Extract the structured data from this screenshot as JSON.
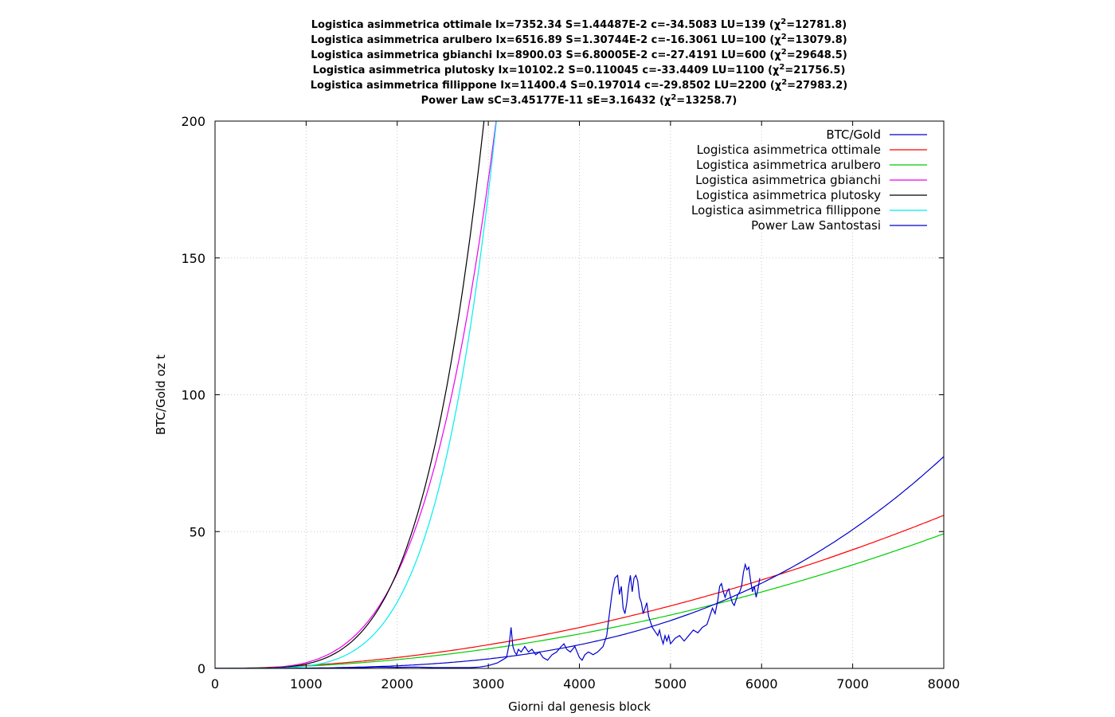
{
  "chart_data": {
    "type": "line",
    "title_lines": [
      {
        "text": "Logistica asimmetrica ottimale Ix=7352.34 S=1.44487E-2 c=-34.5083 LU=139 (",
        "chi": "χ",
        "sup": "2",
        "rest": "=12781.8)"
      },
      {
        "text": "Logistica asimmetrica arulbero Ix=6516.89 S=1.30744E-2 c=-16.3061 LU=100 (",
        "chi": "χ",
        "sup": "2",
        "rest": "=13079.8)"
      },
      {
        "text": "Logistica asimmetrica gbianchi Ix=8900.03 S=6.80005E-2 c=-27.4191 LU=600 (",
        "chi": "χ",
        "sup": "2",
        "rest": "=29648.5)"
      },
      {
        "text": "Logistica asimmetrica plutosky Ix=10102.2 S=0.110045 c=-33.4409 LU=1100 (",
        "chi": "χ",
        "sup": "2",
        "rest": "=21756.5)"
      },
      {
        "text": "Logistica asimmetrica fillippone Ix=11400.4 S=0.197014 c=-29.8502 LU=2200 (",
        "chi": "χ",
        "sup": "2",
        "rest": "=27983.2)"
      },
      {
        "text": "Power Law sC=3.45177E-11 sE=3.16432 (",
        "chi": "χ",
        "sup": "2",
        "rest": "=13258.7)"
      }
    ],
    "xlabel": "Giorni dal genesis block",
    "ylabel": "BTC/Gold oz t",
    "xlim": [
      0,
      8000
    ],
    "ylim": [
      0,
      200
    ],
    "x_ticks": [
      "0",
      "1000",
      "2000",
      "3000",
      "4000",
      "5000",
      "6000",
      "7000",
      "8000"
    ],
    "y_ticks": [
      "0",
      "50",
      "100",
      "150",
      "200"
    ],
    "x_tick_values": [
      0,
      1000,
      2000,
      3000,
      4000,
      5000,
      6000,
      7000,
      8000
    ],
    "y_tick_values": [
      0,
      50,
      100,
      150,
      200
    ],
    "grid": true,
    "legend_position": "top-right",
    "series": [
      {
        "name": "BTC/Gold",
        "color": "#0000cc",
        "x": [
          860,
          1000,
          1200,
          1400,
          1600,
          1800,
          2000,
          2200,
          2400,
          2600,
          2800,
          2900,
          3000,
          3050,
          3100,
          3150,
          3200,
          3230,
          3250,
          3270,
          3290,
          3310,
          3330,
          3360,
          3400,
          3440,
          3480,
          3520,
          3560,
          3600,
          3650,
          3700,
          3750,
          3800,
          3830,
          3860,
          3900,
          3950,
          4000,
          4030,
          4060,
          4100,
          4150,
          4200,
          4260,
          4300,
          4330,
          4360,
          4390,
          4420,
          4440,
          4460,
          4480,
          4500,
          4520,
          4540,
          4560,
          4580,
          4600,
          4620,
          4640,
          4660,
          4680,
          4700,
          4720,
          4740,
          4760,
          4780,
          4800,
          4820,
          4840,
          4860,
          4880,
          4900,
          4920,
          4940,
          4960,
          4980,
          5000,
          5050,
          5100,
          5150,
          5200,
          5250,
          5300,
          5350,
          5400,
          5430,
          5460,
          5490,
          5520,
          5540,
          5560,
          5580,
          5600,
          5620,
          5640,
          5660,
          5680,
          5700,
          5720,
          5740,
          5760,
          5780,
          5800,
          5820,
          5840,
          5860,
          5880,
          5900,
          5920,
          5940,
          5960,
          5980
        ],
        "y": [
          0,
          0.02,
          0.05,
          0.1,
          0.3,
          0.5,
          0.4,
          0.5,
          0.3,
          0.3,
          0.3,
          0.5,
          1,
          1.5,
          2,
          3,
          4,
          9,
          15,
          8,
          6,
          5,
          7,
          6,
          8,
          6,
          7,
          5,
          6,
          4,
          3,
          5,
          6,
          8,
          9,
          7,
          6,
          8,
          4,
          3,
          5,
          6,
          5,
          6,
          8,
          12,
          20,
          28,
          33,
          34,
          27,
          30,
          22,
          20,
          24,
          30,
          34,
          28,
          33,
          34,
          32,
          26,
          24,
          20,
          22,
          24,
          19,
          17,
          15,
          14,
          13,
          12,
          14,
          11,
          9,
          12,
          10,
          12,
          9,
          11,
          12,
          10,
          12,
          14,
          13,
          15,
          16,
          19,
          22,
          20,
          25,
          30,
          31,
          28,
          26,
          28,
          29,
          26,
          24,
          23,
          25,
          27,
          28,
          30,
          35,
          38,
          36,
          37,
          32,
          28,
          30,
          26,
          29,
          33
        ]
      },
      {
        "name": "Logistica asimmetrica ottimale",
        "color": "#ff0000",
        "fn": "power",
        "a": 2.0526e-06,
        "p": 1.905
      },
      {
        "name": "Logistica asimmetrica arulbero",
        "color": "#00cc00",
        "fn": "power",
        "a": 1.033e-06,
        "p": 1.9671
      },
      {
        "name": "Logistica asimmetrica gbianchi",
        "color": "#ee00ee",
        "fn": "power",
        "a": 1.6785e-12,
        "p": 4.034
      },
      {
        "name": "Logistica asimmetrica plutosky",
        "color": "#000000",
        "fn": "power",
        "a": 6.937e-14,
        "p": 4.455
      },
      {
        "name": "Logistica asimmetrica fillippone",
        "color": "#00eeee",
        "fn": "power",
        "a": 2.262e-15,
        "p": 4.856
      },
      {
        "name": "Power Law Santostasi",
        "color": "#0000cc",
        "fn": "power",
        "a": 3.45177e-11,
        "p": 3.16432
      }
    ]
  }
}
